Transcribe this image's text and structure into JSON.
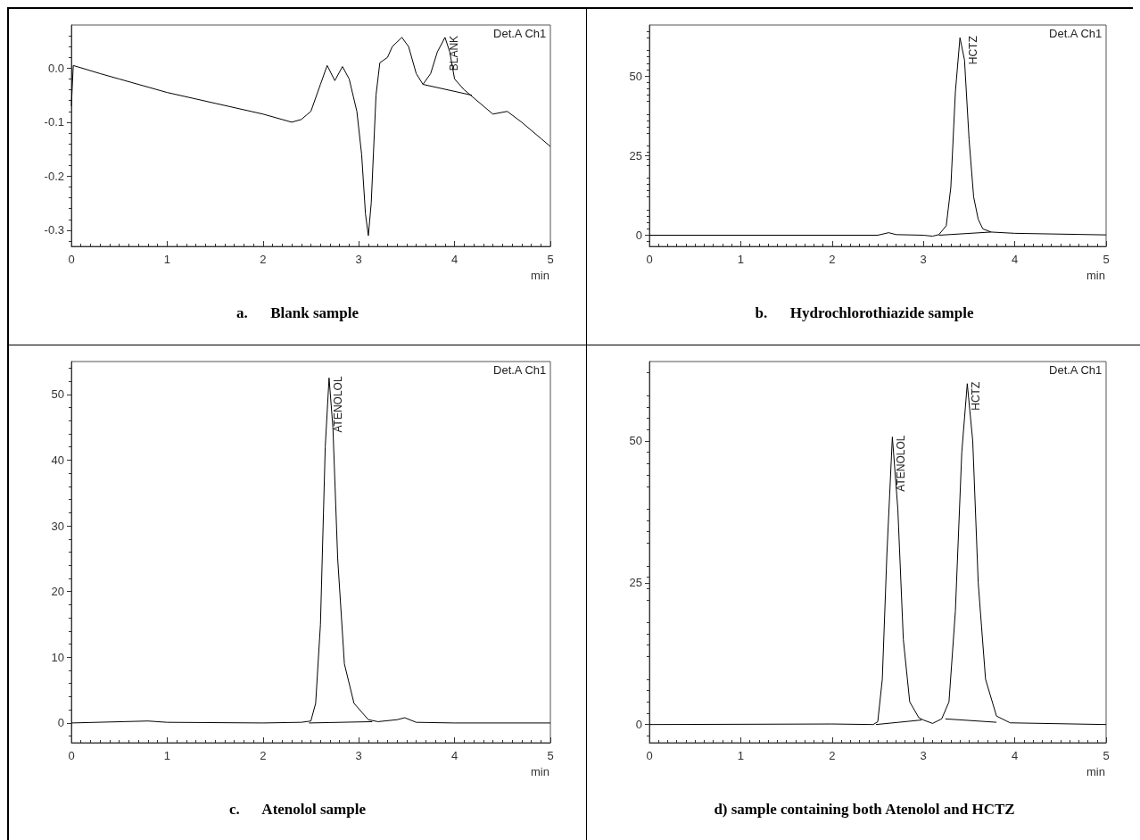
{
  "chart_data": [
    {
      "type": "line",
      "title": "a.      Blank sample",
      "xlabel": "min",
      "xlim": [
        0,
        5
      ],
      "xticks": [
        0,
        1,
        2,
        3,
        4,
        5
      ],
      "ylim": [
        -0.33,
        0.08
      ],
      "yticks": [
        {
          "value": -0.3,
          "label": "-0.3"
        },
        {
          "value": -0.2,
          "label": "-0.2"
        },
        {
          "value": -0.1,
          "label": "-0.1"
        },
        {
          "value": 0,
          "label": "0.0"
        }
      ],
      "annotations": [
        "Det.A Ch1",
        {
          "text": "BLANK",
          "x": 3.9,
          "y": 0.057
        }
      ],
      "series": [
        {
          "color": "#000000",
          "x": [
            0,
            0.02,
            0.3,
            0.5,
            1.0,
            1.5,
            2.0,
            2.3,
            2.4,
            2.5,
            2.6,
            2.67,
            2.75,
            2.83,
            2.9,
            2.98,
            3.03,
            3.07,
            3.1,
            3.13,
            3.18,
            3.22,
            3.3,
            3.35,
            3.45,
            3.52,
            3.6,
            3.67,
            3.75,
            3.82,
            3.9,
            3.95,
            4.0,
            4.1,
            4.2,
            4.4,
            4.55,
            4.7,
            4.9,
            5.0
          ],
          "values": [
            -0.07,
            0.005,
            -0.01,
            -0.02,
            -0.045,
            -0.065,
            -0.085,
            -0.1,
            -0.095,
            -0.08,
            -0.03,
            0.005,
            -0.023,
            0.003,
            -0.02,
            -0.08,
            -0.16,
            -0.27,
            -0.31,
            -0.25,
            -0.05,
            0.01,
            0.02,
            0.04,
            0.057,
            0.04,
            -0.01,
            -0.03,
            -0.01,
            0.03,
            0.057,
            0.03,
            -0.02,
            -0.04,
            -0.055,
            -0.085,
            -0.08,
            -0.1,
            -0.13,
            -0.145
          ]
        },
        {
          "color": "#000000",
          "x": [
            3.67,
            4.18
          ],
          "values": [
            -0.03,
            -0.05
          ]
        }
      ]
    },
    {
      "type": "line",
      "title": "b.      Hydrochlorothiazide sample",
      "xlabel": "min",
      "xlim": [
        0,
        5
      ],
      "xticks": [
        0,
        1,
        2,
        3,
        4,
        5
      ],
      "ylim": [
        -3.5,
        66
      ],
      "yticks": [
        0,
        25,
        50
      ],
      "annotations": [
        "Det.A Ch1",
        {
          "text": "HCTZ",
          "x": 3.45,
          "y": 62
        }
      ],
      "series": [
        {
          "color": "#000000",
          "x": [
            0,
            2.5,
            2.62,
            2.7,
            3.0,
            3.1,
            3.17,
            3.25,
            3.3,
            3.35,
            3.4,
            3.45,
            3.5,
            3.55,
            3.6,
            3.65,
            3.74,
            4.0,
            5.0
          ],
          "values": [
            0,
            0,
            0.8,
            0.2,
            0,
            -0.3,
            0.2,
            3,
            15,
            45,
            62,
            55,
            30,
            12,
            5,
            2,
            1,
            0.6,
            0.1
          ]
        },
        {
          "color": "#000000",
          "x": [
            3.17,
            3.74
          ],
          "values": [
            0,
            1.0
          ]
        }
      ]
    },
    {
      "type": "line",
      "title": "c.      Atenolol sample",
      "xlabel": "min",
      "xlim": [
        0,
        5
      ],
      "xticks": [
        0,
        1,
        2,
        3,
        4,
        5
      ],
      "ylim": [
        -3,
        55
      ],
      "yticks": [
        0,
        10,
        20,
        30,
        40,
        50
      ],
      "annotations": [
        "Det.A Ch1",
        {
          "text": "ATENOLOL",
          "x": 2.69,
          "y": 52.5
        }
      ],
      "series": [
        {
          "color": "#000000",
          "x": [
            0,
            0.8,
            1.0,
            2.0,
            2.4,
            2.5,
            2.55,
            2.6,
            2.65,
            2.69,
            2.73,
            2.78,
            2.85,
            2.95,
            3.1,
            3.2,
            3.4,
            3.48,
            3.6,
            4.0,
            5.0
          ],
          "values": [
            0,
            0.3,
            0.1,
            0,
            0.1,
            0.3,
            3,
            15,
            42,
            52.5,
            45,
            25,
            9,
            3,
            0.5,
            0.2,
            0.5,
            0.8,
            0.1,
            0,
            0
          ]
        },
        {
          "color": "#000000",
          "x": [
            2.48,
            3.14
          ],
          "values": [
            0,
            0.2
          ]
        }
      ]
    },
    {
      "type": "line",
      "title": "d) sample containing both Atenolol and HCTZ",
      "xlabel": "min",
      "xlim": [
        0,
        5
      ],
      "xticks": [
        0,
        1,
        2,
        3,
        4,
        5
      ],
      "ylim": [
        -3.2,
        64
      ],
      "yticks": [
        0,
        25,
        50
      ],
      "annotations": [
        "Det.A Ch1",
        {
          "text": "ATENOLOL",
          "x": 2.66,
          "y": 50.7
        },
        {
          "text": "HCTZ",
          "x": 3.48,
          "y": 60.1
        }
      ],
      "series": [
        {
          "color": "#000000",
          "x": [
            0,
            2.0,
            2.45,
            2.5,
            2.55,
            2.6,
            2.66,
            2.72,
            2.78,
            2.85,
            2.95,
            3.0,
            3.1,
            3.2,
            3.28,
            3.35,
            3.42,
            3.48,
            3.54,
            3.6,
            3.68,
            3.8,
            3.95,
            5.0
          ],
          "values": [
            0,
            0.1,
            0,
            0.5,
            8,
            30,
            50.7,
            38,
            15,
            4,
            1.2,
            0.8,
            0.2,
            1,
            4,
            20,
            48,
            60.1,
            50,
            25,
            8,
            1.5,
            0.3,
            0
          ]
        },
        {
          "color": "#000000",
          "x": [
            2.48,
            2.98
          ],
          "values": [
            0,
            0.8
          ]
        },
        {
          "color": "#000000",
          "x": [
            3.24,
            3.8
          ],
          "values": [
            1.0,
            0.4
          ]
        }
      ]
    }
  ]
}
